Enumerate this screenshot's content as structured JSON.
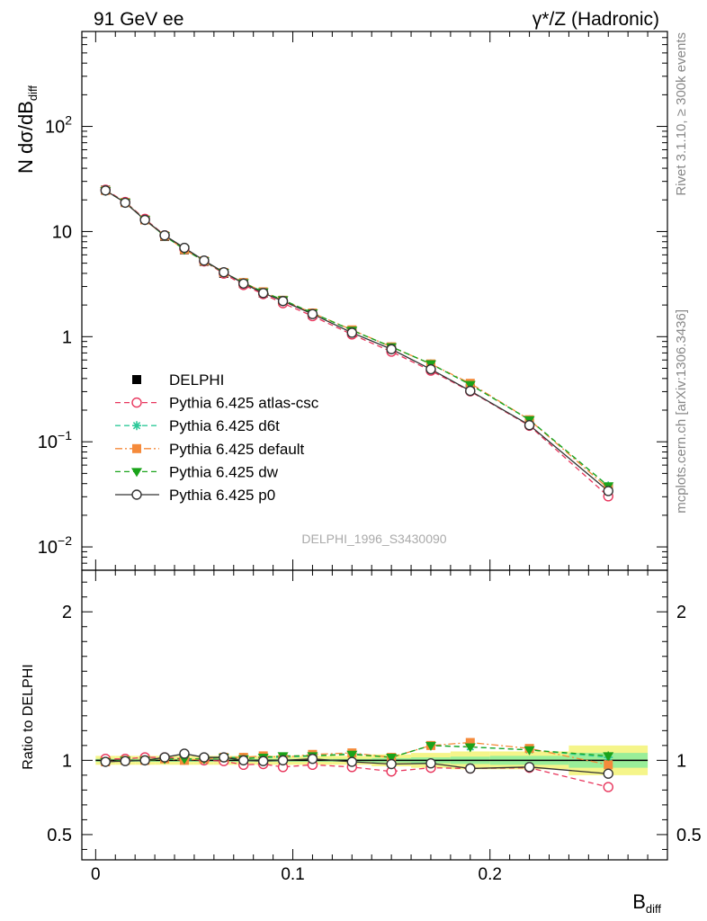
{
  "header": {
    "left_label": "91 GeV ee",
    "right_label": "γ*/Z (Hadronic)"
  },
  "side_labels": {
    "rivet": "Rivet 3.1.10, ≥ 300k events",
    "mcplots": "mcplots.cern.ch [arXiv:1306.3436]"
  },
  "watermark": "DELPHI_1996_S3430090",
  "chart_data": [
    {
      "type": "line",
      "panel": "main",
      "ylabel": "N dσ/dB",
      "ylabel_sub": "diff",
      "yscale": "log",
      "xlim": [
        -0.007,
        0.29
      ],
      "ylim": [
        0.006,
        800
      ],
      "y_ticks": [
        {
          "value": 0.01,
          "base": "10",
          "exp": "−2"
        },
        {
          "value": 0.1,
          "base": "10",
          "exp": "−1"
        },
        {
          "value": 1,
          "base": "1",
          "exp": ""
        },
        {
          "value": 10,
          "base": "10",
          "exp": ""
        },
        {
          "value": 100,
          "base": "10",
          "exp": "2"
        }
      ],
      "x": [
        0.005,
        0.015,
        0.025,
        0.035,
        0.045,
        0.055,
        0.065,
        0.075,
        0.085,
        0.095,
        0.11,
        0.13,
        0.15,
        0.17,
        0.19,
        0.22,
        0.26
      ],
      "series": [
        {
          "name": "DELPHI",
          "color": "#000000",
          "marker": "square",
          "line": "none",
          "values": [
            24.8,
            18.9,
            12.9,
            9.0,
            6.7,
            5.2,
            4.0,
            3.2,
            2.6,
            2.18,
            1.62,
            1.1,
            0.78,
            0.5,
            0.32,
            0.15,
            0.037
          ]
        },
        {
          "name": "Pythia 6.425 atlas-csc",
          "color": "#e8355c",
          "marker": "circle-open",
          "line": "dashed",
          "values": [
            25.0,
            19.1,
            13.2,
            9.2,
            6.8,
            5.2,
            3.98,
            3.1,
            2.54,
            2.08,
            1.57,
            1.05,
            0.72,
            0.475,
            0.302,
            0.142,
            0.0303
          ]
        },
        {
          "name": "Pythia 6.425 d6t",
          "color": "#2ec99a",
          "marker": "star",
          "line": "dashed",
          "values": [
            24.5,
            18.9,
            12.95,
            9.1,
            6.75,
            5.25,
            4.08,
            3.27,
            2.66,
            2.22,
            1.68,
            1.15,
            0.8,
            0.55,
            0.35,
            0.162,
            0.038
          ]
        },
        {
          "name": "Pythia 6.425 default",
          "color": "#f58a3a",
          "marker": "square",
          "line": "dashdot",
          "values": [
            24.6,
            18.9,
            12.9,
            9.1,
            6.75,
            5.25,
            4.08,
            3.27,
            2.67,
            2.22,
            1.68,
            1.16,
            0.8,
            0.55,
            0.36,
            0.162,
            0.036
          ]
        },
        {
          "name": "Pythia 6.425 dw",
          "color": "#1aa31a",
          "marker": "triangle-down",
          "line": "dashed",
          "values": [
            24.5,
            18.9,
            12.95,
            9.1,
            6.75,
            5.25,
            4.06,
            3.25,
            2.66,
            2.24,
            1.68,
            1.15,
            0.8,
            0.55,
            0.35,
            0.162,
            0.038
          ]
        },
        {
          "name": "Pythia 6.425 p0",
          "color": "#333333",
          "marker": "circle-open",
          "line": "solid",
          "values": [
            24.6,
            18.8,
            12.9,
            9.2,
            7.0,
            5.3,
            4.1,
            3.2,
            2.6,
            2.18,
            1.64,
            1.09,
            0.76,
            0.49,
            0.305,
            0.144,
            0.034
          ]
        }
      ]
    },
    {
      "type": "line",
      "panel": "ratio",
      "ylabel": "Ratio to DELPHI",
      "xlabel": "B",
      "xlabel_sub": "diff",
      "xlim": [
        -0.007,
        0.29
      ],
      "ylim": [
        0.33,
        2.28
      ],
      "x_ticks": [
        {
          "value": 0,
          "label": "0"
        },
        {
          "value": 0.1,
          "label": "0.1"
        },
        {
          "value": 0.2,
          "label": "0.2"
        }
      ],
      "y_ticks": [
        {
          "value": 0.5,
          "label": "0.5"
        },
        {
          "value": 1,
          "label": "1"
        },
        {
          "value": 2,
          "label": "2"
        }
      ],
      "bands": {
        "edges": [
          0,
          0.01,
          0.02,
          0.03,
          0.04,
          0.05,
          0.06,
          0.07,
          0.08,
          0.09,
          0.1,
          0.12,
          0.14,
          0.16,
          0.18,
          0.2,
          0.24,
          0.28
        ],
        "stat_half": [
          0.01,
          0.01,
          0.01,
          0.01,
          0.01,
          0.01,
          0.01,
          0.01,
          0.01,
          0.01,
          0.01,
          0.01,
          0.015,
          0.02,
          0.025,
          0.03,
          0.05
        ],
        "total_half": [
          0.03,
          0.03,
          0.03,
          0.03,
          0.03,
          0.03,
          0.03,
          0.03,
          0.03,
          0.03,
          0.03,
          0.03,
          0.04,
          0.05,
          0.06,
          0.06,
          0.1
        ],
        "inner_color": "#99ee99",
        "outer_color": "#f5f58a"
      },
      "x": [
        0.005,
        0.015,
        0.025,
        0.035,
        0.045,
        0.055,
        0.065,
        0.075,
        0.085,
        0.095,
        0.11,
        0.13,
        0.15,
        0.17,
        0.19,
        0.22,
        0.26
      ],
      "series": [
        {
          "name": "Pythia 6.425 atlas-csc",
          "color": "#e8355c",
          "marker": "circle-open",
          "line": "dashed",
          "values": [
            1.01,
            1.01,
            1.02,
            1.02,
            1.01,
            1.0,
            0.995,
            0.97,
            0.975,
            0.955,
            0.97,
            0.955,
            0.925,
            0.95,
            0.945,
            0.95,
            0.82
          ],
          "errors": [
            0.0,
            0.0,
            0.0,
            0.0,
            0.0,
            0.0,
            0.0,
            0.0,
            0.0,
            0.0,
            0.0,
            0.0,
            0.0,
            0.0,
            0.0,
            0.0,
            0.03
          ]
        },
        {
          "name": "Pythia 6.425 d6t",
          "color": "#2ec99a",
          "marker": "star",
          "line": "dashed",
          "values": [
            0.99,
            1.0,
            1.0,
            1.01,
            1.0,
            1.01,
            1.02,
            1.02,
            1.02,
            1.02,
            1.03,
            1.045,
            1.02,
            1.1,
            1.09,
            1.07,
            1.02
          ],
          "errors": [
            0.0,
            0.0,
            0.0,
            0.0,
            0.0,
            0.0,
            0.0,
            0.0,
            0.0,
            0.0,
            0.0,
            0.0,
            0.0,
            0.0,
            0.0,
            0.0,
            0.03
          ]
        },
        {
          "name": "Pythia 6.425 default",
          "color": "#f58a3a",
          "marker": "square",
          "line": "dashdot",
          "values": [
            0.99,
            1.0,
            1.0,
            1.01,
            1.0,
            1.01,
            1.02,
            1.02,
            1.03,
            1.02,
            1.04,
            1.05,
            1.02,
            1.1,
            1.12,
            1.08,
            0.97
          ],
          "errors": [
            0.0,
            0.0,
            0.0,
            0.0,
            0.0,
            0.0,
            0.0,
            0.0,
            0.0,
            0.0,
            0.0,
            0.0,
            0.0,
            0.0,
            0.0,
            0.0,
            0.03
          ]
        },
        {
          "name": "Pythia 6.425 dw",
          "color": "#1aa31a",
          "marker": "triangle-down",
          "line": "dashed",
          "values": [
            0.99,
            1.0,
            1.0,
            1.01,
            1.01,
            1.01,
            1.02,
            1.01,
            1.02,
            1.03,
            1.03,
            1.04,
            1.02,
            1.1,
            1.09,
            1.07,
            1.03
          ],
          "errors": [
            0.0,
            0.0,
            0.0,
            0.0,
            0.0,
            0.0,
            0.0,
            0.0,
            0.0,
            0.0,
            0.0,
            0.0,
            0.0,
            0.0,
            0.0,
            0.0,
            0.03
          ]
        },
        {
          "name": "Pythia 6.425 p0",
          "color": "#333333",
          "marker": "circle-open",
          "line": "solid",
          "values": [
            0.99,
            0.995,
            1.0,
            1.02,
            1.045,
            1.02,
            1.02,
            1.0,
            0.995,
            1.0,
            1.01,
            0.99,
            0.975,
            0.98,
            0.945,
            0.955,
            0.91
          ],
          "errors": [
            0.0,
            0.0,
            0.0,
            0.0,
            0.0,
            0.0,
            0.0,
            0.0,
            0.0,
            0.0,
            0.0,
            0.0,
            0.0,
            0.0,
            0.0,
            0.0,
            0.03
          ]
        }
      ]
    }
  ]
}
